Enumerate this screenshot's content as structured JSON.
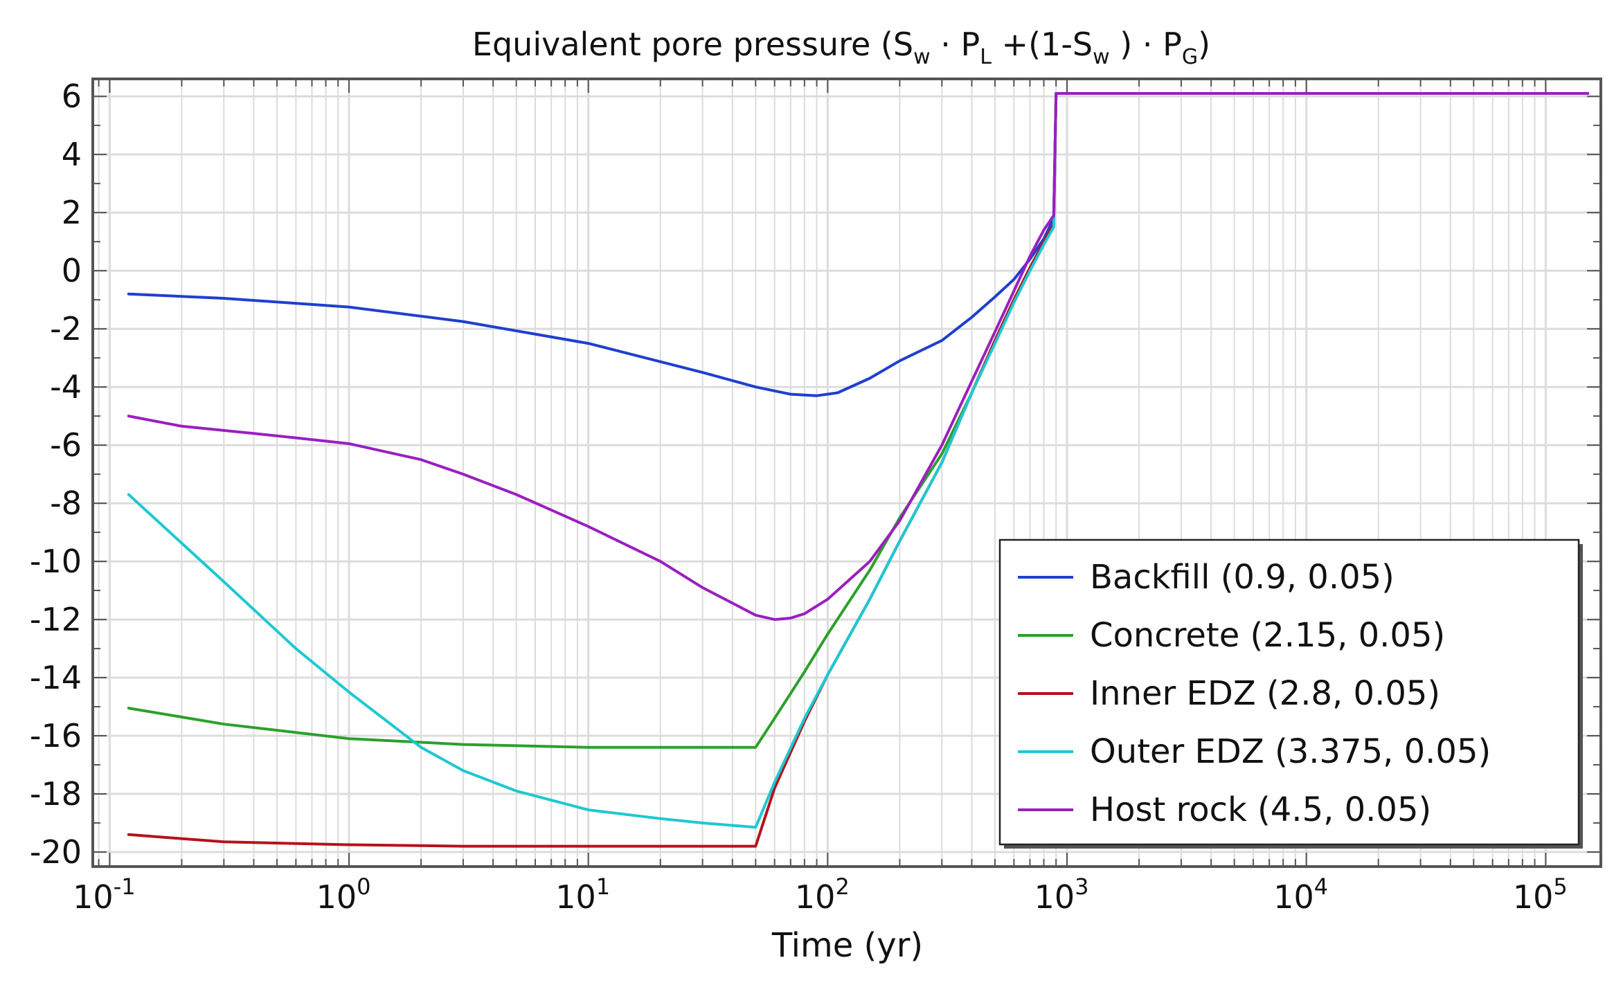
{
  "chart_data": {
    "type": "line",
    "title": {
      "prefix": "Equivalent pore pressure (S",
      "sub_w1": "w",
      "mid1": " · P",
      "sub_l": "L",
      "mid2": " +(1-S",
      "sub_w2": "w",
      "mid3": " ) · P",
      "sub_g": "G",
      "suffix": ")"
    },
    "xlabel": "Time (yr)",
    "ylabel": "",
    "xscale": "log",
    "xlim": [
      0.085,
      170000
    ],
    "ylim": [
      -20.5,
      6.6
    ],
    "y_ticks": [
      6,
      4,
      2,
      0,
      -2,
      -4,
      -6,
      -8,
      -10,
      -12,
      -14,
      -16,
      -18,
      -20
    ],
    "x_ticks": [
      {
        "base": "10",
        "exp": "-1",
        "value": 0.1
      },
      {
        "base": "10",
        "exp": "0",
        "value": 1
      },
      {
        "base": "10",
        "exp": "1",
        "value": 10
      },
      {
        "base": "10",
        "exp": "2",
        "value": 100
      },
      {
        "base": "10",
        "exp": "3",
        "value": 1000
      },
      {
        "base": "10",
        "exp": "4",
        "value": 10000
      },
      {
        "base": "10",
        "exp": "5",
        "value": 100000
      }
    ],
    "grid": true,
    "legend_position": "bottom-right",
    "series": [
      {
        "name": "Backfill (0.9, 0.05)",
        "color": "#1f3fd0",
        "x": [
          0.12,
          0.3,
          1,
          3,
          10,
          30,
          50,
          70,
          90,
          110,
          150,
          200,
          300,
          400,
          500,
          600,
          700,
          800,
          880,
          900,
          1000,
          10000,
          150000
        ],
        "y": [
          -0.8,
          -0.95,
          -1.25,
          -1.75,
          -2.5,
          -3.5,
          -4.0,
          -4.25,
          -4.3,
          -4.2,
          -3.7,
          -3.1,
          -2.4,
          -1.6,
          -0.9,
          -0.3,
          0.4,
          1.1,
          1.8,
          6.1,
          6.1,
          6.1,
          6.1
        ]
      },
      {
        "name": "Concrete (2.15, 0.05)",
        "color": "#2ca02c",
        "x": [
          0.12,
          0.3,
          1,
          3,
          10,
          30,
          50,
          60,
          80,
          100,
          150,
          200,
          300,
          400,
          500,
          600,
          700,
          800,
          880,
          900,
          1000,
          10000,
          150000
        ],
        "y": [
          -15.05,
          -15.6,
          -16.1,
          -16.3,
          -16.4,
          -16.4,
          -16.4,
          -15.4,
          -13.8,
          -12.5,
          -10.3,
          -8.5,
          -6.3,
          -4.2,
          -2.4,
          -1.0,
          0.1,
          1.0,
          1.6,
          6.1,
          6.1,
          6.1,
          6.1
        ]
      },
      {
        "name": "Inner EDZ (2.8, 0.05)",
        "color": "#b5121b",
        "x": [
          0.12,
          0.3,
          1,
          3,
          10,
          30,
          50,
          60,
          80,
          100,
          150,
          200,
          300,
          400,
          500,
          600,
          700,
          800,
          880,
          900,
          1000,
          10000,
          150000
        ],
        "y": [
          -19.4,
          -19.65,
          -19.75,
          -19.8,
          -19.8,
          -19.8,
          -19.8,
          -17.8,
          -15.5,
          -13.9,
          -11.3,
          -9.3,
          -6.6,
          -4.2,
          -2.4,
          -1.0,
          0.1,
          1.0,
          1.6,
          6.1,
          6.1,
          6.1,
          6.1
        ]
      },
      {
        "name": "Outer EDZ (3.375, 0.05)",
        "color": "#1ec8d2",
        "x": [
          0.12,
          0.3,
          0.6,
          1,
          2,
          3,
          5,
          10,
          20,
          30,
          50,
          60,
          80,
          100,
          150,
          200,
          300,
          400,
          500,
          600,
          700,
          800,
          880,
          900,
          1000,
          10000,
          150000
        ],
        "y": [
          -7.7,
          -10.7,
          -13.0,
          -14.5,
          -16.4,
          -17.2,
          -17.9,
          -18.55,
          -18.85,
          -19.0,
          -19.15,
          -17.6,
          -15.4,
          -13.9,
          -11.3,
          -9.3,
          -6.6,
          -4.2,
          -2.5,
          -1.1,
          0.0,
          0.9,
          1.5,
          6.1,
          6.1,
          6.1,
          6.1
        ]
      },
      {
        "name": "Host rock (4.5, 0.05)",
        "color": "#9a1fc0",
        "x": [
          0.12,
          0.2,
          0.4,
          0.6,
          1,
          2,
          3,
          5,
          10,
          20,
          30,
          50,
          60,
          70,
          80,
          100,
          150,
          200,
          300,
          400,
          500,
          600,
          700,
          800,
          880,
          900,
          1000,
          10000,
          150000
        ],
        "y": [
          -5.0,
          -5.35,
          -5.6,
          -5.75,
          -5.95,
          -6.5,
          -7.0,
          -7.7,
          -8.8,
          -10.0,
          -10.9,
          -11.85,
          -12.0,
          -11.95,
          -11.8,
          -11.3,
          -10.0,
          -8.6,
          -6.0,
          -3.8,
          -2.1,
          -0.7,
          0.5,
          1.4,
          1.9,
          6.1,
          6.1,
          6.1,
          6.1
        ]
      }
    ]
  }
}
